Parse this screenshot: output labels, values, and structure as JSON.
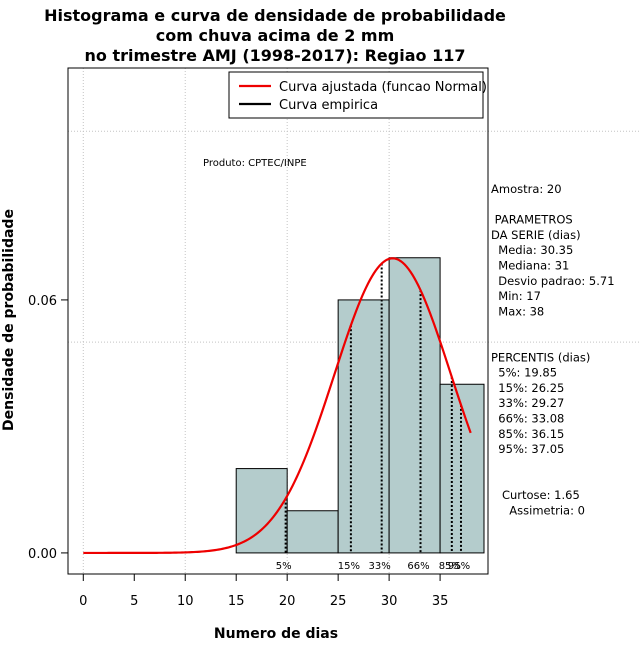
{
  "chart_data": {
    "type": "bar",
    "title_lines": [
      "Histograma e curva de densidade de probabilidade",
      "com chuva acima de 2 mm",
      "no trimestre AMJ (1998-2017): Regiao 117"
    ],
    "xlabel": "Numero de dias",
    "ylabel": "Densidade de probabilidade",
    "xlim": [
      -1.5,
      39.7
    ],
    "ylim": [
      -0.005,
      0.115
    ],
    "x_ticks": [
      0,
      5,
      10,
      15,
      20,
      25,
      30,
      35
    ],
    "x_tick_labels": [
      "0",
      "5",
      "10",
      "15",
      "20",
      "25",
      "30",
      "35"
    ],
    "y_ticks": [
      0.0,
      0.06
    ],
    "y_tick_labels": [
      "0.00",
      "0.06"
    ],
    "grid": true,
    "grid_x": [
      0,
      10,
      20,
      30
    ],
    "grid_y": [
      0.1,
      0.05
    ],
    "bins": [
      {
        "x0": 15,
        "x1": 20,
        "density": 0.02
      },
      {
        "x0": 20,
        "x1": 25,
        "density": 0.01
      },
      {
        "x0": 25,
        "x1": 30,
        "density": 0.06
      },
      {
        "x0": 30,
        "x1": 35,
        "density": 0.07
      },
      {
        "x0": 35,
        "x1": 40,
        "density": 0.04
      }
    ],
    "bar_color": "#b4cccc",
    "normal_curve": {
      "name": "Curva ajustada (funcao Normal)",
      "mean": 30.35,
      "sd": 5.71,
      "x_start": 0,
      "x_end": 38,
      "color": "#ee0000"
    },
    "empirical_curve": {
      "name": "Curva empirica",
      "color": "#000000"
    },
    "legend_position": "top-right",
    "percentile_lines": [
      {
        "label": "5%",
        "x": 19.85
      },
      {
        "label": "15%",
        "x": 26.25
      },
      {
        "label": "33%",
        "x": 29.27
      },
      {
        "label": "66%",
        "x": 33.08
      },
      {
        "label": "85%",
        "x": 36.15
      },
      {
        "label": "95%",
        "x": 37.05
      }
    ]
  },
  "annotations": {
    "producer": "Produto: CPTEC/INPE",
    "stats_lines": [
      "Amostra: 20",
      "",
      " PARAMETROS",
      "DA SERIE (dias)",
      "  Media: 30.35",
      "  Mediana: 31",
      "  Desvio padrao: 5.71",
      "  Min: 17",
      "  Max: 38",
      "",
      "",
      "PERCENTIS (dias)",
      "  5%: 19.85",
      "  15%: 26.25",
      "  33%: 29.27",
      "  66%: 33.08",
      "  85%: 36.15",
      "  95%: 37.05",
      "",
      "",
      "   Curtose: 1.65",
      "     Assimetria: 0"
    ]
  }
}
